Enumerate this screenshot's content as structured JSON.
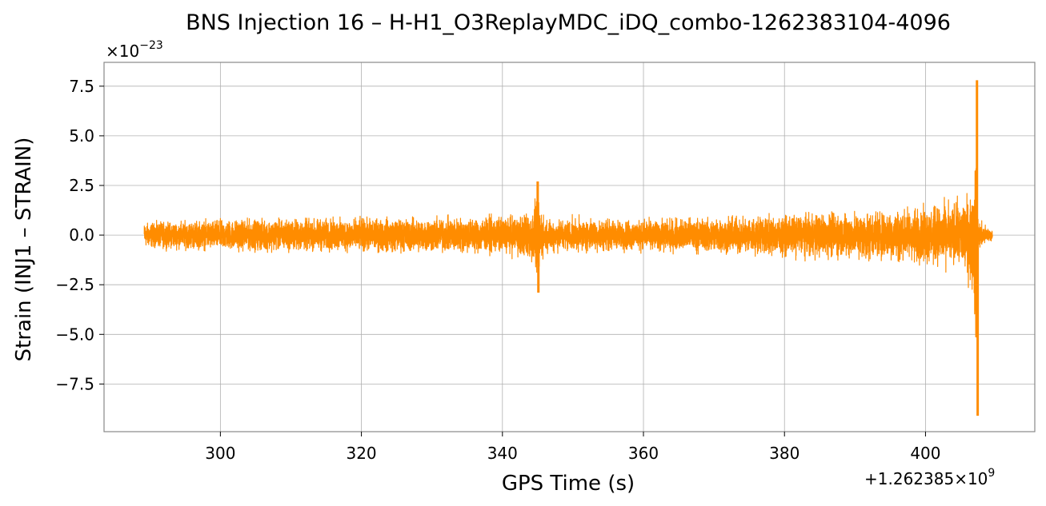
{
  "chart_data": {
    "type": "line",
    "title": "BNS Injection 16 – H-H1_O3ReplayMDC_iDQ_combo-1262383104-4096",
    "xlabel": "GPS Time (s)",
    "ylabel": "Strain (INJ1 – STRAIN)",
    "x_offset_label": "+1.262385×10",
    "x_offset_exponent": "9",
    "y_multiplier_label": "×10",
    "y_multiplier_exponent": "−23",
    "xlim": [
      283.5,
      415.5
    ],
    "ylim": [
      -9.9,
      8.7
    ],
    "xticks": [
      300,
      320,
      340,
      360,
      380,
      400
    ],
    "xtick_labels": [
      "300",
      "320",
      "340",
      "360",
      "380",
      "400"
    ],
    "yticks": [
      7.5,
      5.0,
      2.5,
      0.0,
      -2.5,
      -5.0,
      -7.5
    ],
    "ytick_labels": [
      "7.5",
      "5.0",
      "2.5",
      "0.0",
      "−2.5",
      "−5.0",
      "−7.5"
    ],
    "grid": true,
    "line_color": "#ff8c00",
    "series": [
      {
        "x_start": 289.2,
        "x_end": 409.5,
        "envelope": {
          "x": [
            289.2,
            300,
            320,
            340,
            343,
            344.5,
            345,
            346,
            360,
            380,
            400,
            405,
            406.8,
            407.2,
            407.5,
            408,
            409.5
          ],
          "upper": [
            0.8,
            1.0,
            1.1,
            1.2,
            1.4,
            2.0,
            2.6,
            1.1,
            1.0,
            1.3,
            1.8,
            2.2,
            3.2,
            7.8,
            1.0,
            0.8,
            0.3
          ],
          "lower": [
            -0.8,
            -1.0,
            -1.1,
            -1.2,
            -1.4,
            -2.2,
            -2.8,
            -1.1,
            -1.0,
            -1.3,
            -1.8,
            -2.2,
            -3.4,
            -9.0,
            -1.0,
            -0.8,
            -0.3
          ]
        },
        "extrema": [
          {
            "x": 345.0,
            "y": 2.7
          },
          {
            "x": 345.1,
            "y": -2.9
          },
          {
            "x": 407.3,
            "y": 7.8
          },
          {
            "x": 407.4,
            "y": -9.1
          }
        ]
      }
    ]
  }
}
